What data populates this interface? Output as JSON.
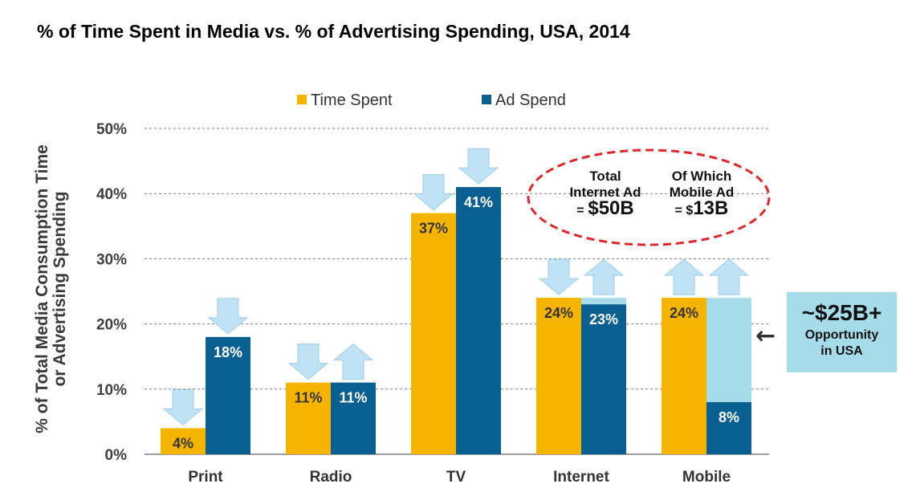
{
  "title": "% of Time Spent in Media vs. % of Advertising Spending, USA, 2014",
  "chart_data": {
    "type": "bar",
    "ylabel": "% of Total Media Consumption Time or Advertising Spending",
    "ylabel_lines": [
      "% of Total Media Consumption Time",
      "or Advertising Spending"
    ],
    "ylim": [
      0,
      50
    ],
    "yticks": [
      "0%",
      "10%",
      "20%",
      "30%",
      "40%",
      "50%"
    ],
    "grid": true,
    "legend_position": "top",
    "categories": [
      "Print",
      "Radio",
      "TV",
      "Internet",
      "Mobile"
    ],
    "series": [
      {
        "name": "Time Spent",
        "color": "#f5b400",
        "values": [
          4,
          11,
          37,
          24,
          24
        ],
        "labels": [
          "4%",
          "11%",
          "37%",
          "24%",
          "24%"
        ],
        "arrows": [
          "down",
          "down",
          "down",
          "down",
          "up"
        ]
      },
      {
        "name": "Ad Spend",
        "color": "#0a5f91",
        "values": [
          18,
          11,
          41,
          23,
          8
        ],
        "labels": [
          "18%",
          "11%",
          "41%",
          "23%",
          "8%"
        ],
        "arrows": [
          "down",
          "up",
          "down",
          "up",
          "up"
        ]
      }
    ],
    "opportunity_tops": {
      "Internet": 24,
      "Mobile": 24
    },
    "opportunity_color": "#a6dcea",
    "arrow_color": "#bfe3f5"
  },
  "callout": {
    "internet_line1": "Total",
    "internet_line2": "Internet Ad",
    "internet_eq": "=",
    "internet_value": "$50B",
    "mobile_line1": "Of Which",
    "mobile_line2": "Mobile Ad",
    "mobile_eq": "= $",
    "mobile_value": "13B",
    "border_color": "#e0262b"
  },
  "opportunity": {
    "amount": "~$25B+",
    "text": "Opportunity\nin USA",
    "arrow": "←"
  }
}
